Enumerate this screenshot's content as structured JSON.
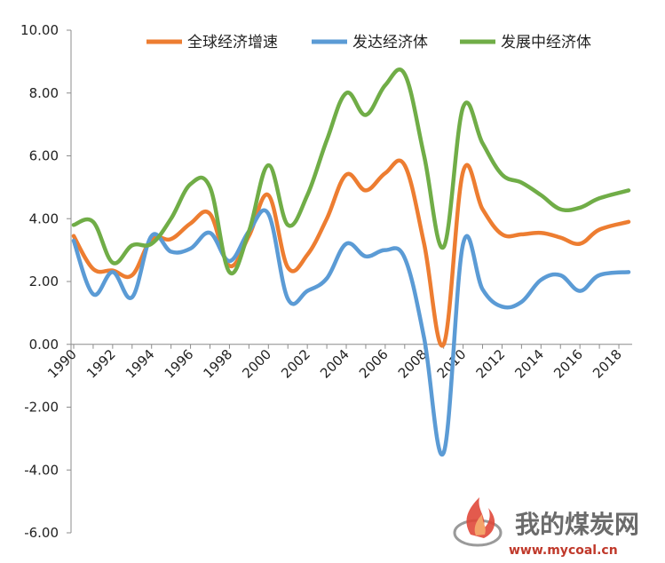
{
  "chart_data": {
    "type": "line",
    "title": "",
    "xlabel": "",
    "ylabel": "",
    "ylim": [
      -6,
      10
    ],
    "xlim": [
      1990,
      2018.6
    ],
    "y_ticks": [
      "10.00",
      "8.00",
      "6.00",
      "4.00",
      "2.00",
      "0.00",
      "-2.00",
      "-4.00",
      "-6.00"
    ],
    "x_ticks": [
      "1990",
      "1992",
      "1994",
      "1996",
      "1998",
      "2000",
      "2002",
      "2004",
      "2006",
      "2008",
      "2010",
      "2012",
      "2014",
      "2016",
      "2018"
    ],
    "grid": false,
    "legend_position": "top-right",
    "series": [
      {
        "name": "全球经济增速",
        "color": "#ED7D31",
        "points": [
          [
            1990,
            3.45
          ],
          [
            1991,
            2.4
          ],
          [
            1992,
            2.35
          ],
          [
            1993,
            2.2
          ],
          [
            1994,
            3.35
          ],
          [
            1995,
            3.35
          ],
          [
            1996,
            3.85
          ],
          [
            1997,
            4.15
          ],
          [
            1998,
            2.5
          ],
          [
            1999,
            3.45
          ],
          [
            2000,
            4.75
          ],
          [
            2001,
            2.45
          ],
          [
            2002,
            2.85
          ],
          [
            2003,
            4.0
          ],
          [
            2004,
            5.4
          ],
          [
            2005,
            4.9
          ],
          [
            2006,
            5.45
          ],
          [
            2007,
            5.7
          ],
          [
            2008,
            3.2
          ],
          [
            2009,
            0.0
          ],
          [
            2010,
            5.5
          ],
          [
            2011,
            4.3
          ],
          [
            2012,
            3.5
          ],
          [
            2013,
            3.5
          ],
          [
            2014,
            3.55
          ],
          [
            2015,
            3.4
          ],
          [
            2016,
            3.2
          ],
          [
            2017,
            3.65
          ],
          [
            2018.5,
            3.9
          ]
        ]
      },
      {
        "name": "发达经济体",
        "color": "#5B9BD5",
        "points": [
          [
            1990,
            3.3
          ],
          [
            1991,
            1.6
          ],
          [
            1992,
            2.3
          ],
          [
            1993,
            1.5
          ],
          [
            1994,
            3.45
          ],
          [
            1995,
            2.95
          ],
          [
            1996,
            3.05
          ],
          [
            1997,
            3.55
          ],
          [
            1998,
            2.65
          ],
          [
            1999,
            3.6
          ],
          [
            2000,
            4.15
          ],
          [
            2001,
            1.45
          ],
          [
            2002,
            1.7
          ],
          [
            2003,
            2.1
          ],
          [
            2004,
            3.2
          ],
          [
            2005,
            2.8
          ],
          [
            2006,
            3.0
          ],
          [
            2007,
            2.75
          ],
          [
            2008,
            0.2
          ],
          [
            2009,
            -3.45
          ],
          [
            2010,
            3.2
          ],
          [
            2011,
            1.75
          ],
          [
            2012,
            1.2
          ],
          [
            2013,
            1.35
          ],
          [
            2014,
            2.05
          ],
          [
            2015,
            2.2
          ],
          [
            2016,
            1.7
          ],
          [
            2017,
            2.2
          ],
          [
            2018.5,
            2.3
          ]
        ]
      },
      {
        "name": "发展中经济体",
        "color": "#70AD47",
        "points": [
          [
            1990,
            3.8
          ],
          [
            1991,
            3.9
          ],
          [
            1992,
            2.6
          ],
          [
            1993,
            3.15
          ],
          [
            1994,
            3.2
          ],
          [
            1995,
            4.0
          ],
          [
            1996,
            5.1
          ],
          [
            1997,
            5.0
          ],
          [
            1998,
            2.3
          ],
          [
            1999,
            3.6
          ],
          [
            2000,
            5.7
          ],
          [
            2001,
            3.8
          ],
          [
            2002,
            4.75
          ],
          [
            2003,
            6.5
          ],
          [
            2004,
            8.0
          ],
          [
            2005,
            7.3
          ],
          [
            2006,
            8.25
          ],
          [
            2007,
            8.6
          ],
          [
            2008,
            6.0
          ],
          [
            2009,
            3.1
          ],
          [
            2010,
            7.55
          ],
          [
            2011,
            6.4
          ],
          [
            2012,
            5.4
          ],
          [
            2013,
            5.15
          ],
          [
            2014,
            4.75
          ],
          [
            2015,
            4.3
          ],
          [
            2016,
            4.35
          ],
          [
            2017,
            4.65
          ],
          [
            2018.5,
            4.9
          ]
        ]
      }
    ]
  },
  "watermark": {
    "text": "我的煤炭网",
    "url": "www.mycoal.cn"
  }
}
